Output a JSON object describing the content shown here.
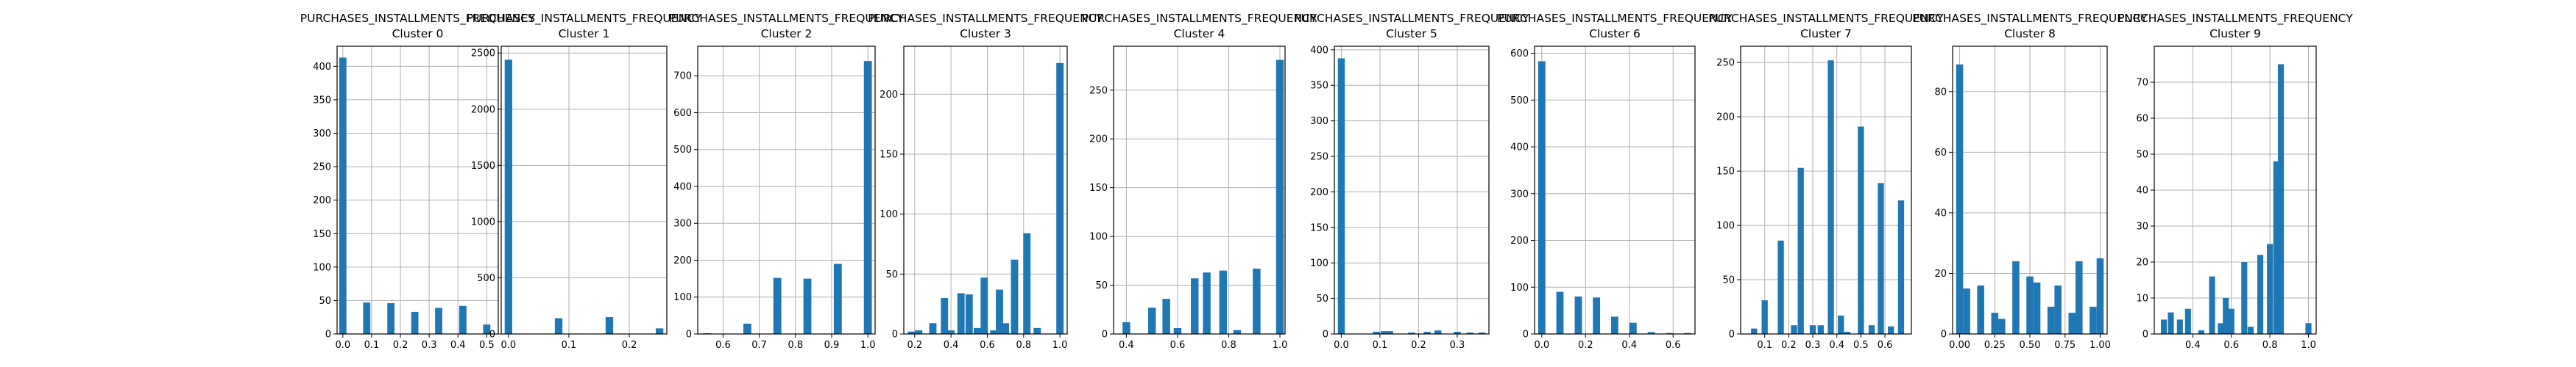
{
  "figure": {
    "bar_color": "#1f77b4",
    "grid_color": "#b0b0b0",
    "grid": true
  },
  "chart_data": [
    {
      "type": "bar",
      "title": "PURCHASES_INSTALLMENTS_FREQUENCY",
      "subtitle": "Cluster 0",
      "xlim": [
        -0.02,
        0.54
      ],
      "ylim": [
        0,
        430
      ],
      "xticks": [
        0.0,
        0.1,
        0.2,
        0.3,
        0.4,
        0.5
      ],
      "xticklabels": [
        "0.0",
        "0.1",
        "0.2",
        "0.3",
        "0.4",
        "0.5"
      ],
      "yticks": [
        0,
        50,
        100,
        150,
        200,
        250,
        300,
        350,
        400
      ],
      "yticklabels": [
        "0",
        "50",
        "100",
        "150",
        "200",
        "250",
        "300",
        "350",
        "400"
      ],
      "bin_width": 0.025,
      "x": [
        0.0,
        0.083,
        0.167,
        0.25,
        0.333,
        0.417,
        0.5
      ],
      "values": [
        413,
        47,
        46,
        33,
        39,
        42,
        14
      ]
    },
    {
      "type": "bar",
      "title": "PURCHASES_INSTALLMENTS_FREQUENCY",
      "subtitle": "Cluster 1",
      "xlim": [
        -0.012,
        0.262
      ],
      "ylim": [
        0,
        2560
      ],
      "xticks": [
        0.0,
        0.1,
        0.2
      ],
      "xticklabels": [
        "0.0",
        "0.1",
        "0.2"
      ],
      "yticks": [
        0,
        500,
        1000,
        1500,
        2000,
        2500
      ],
      "yticklabels": [
        "0",
        "500",
        "1000",
        "1500",
        "2000",
        "2500"
      ],
      "bin_width": 0.0125,
      "x": [
        0.0,
        0.083,
        0.167,
        0.25
      ],
      "values": [
        2440,
        140,
        150,
        50
      ]
    },
    {
      "type": "bar",
      "title": "PURCHASES_INSTALLMENTS_FREQUENCY",
      "subtitle": "Cluster 2",
      "xlim": [
        0.53,
        1.02
      ],
      "ylim": [
        0,
        780
      ],
      "xticks": [
        0.6,
        0.7,
        0.8,
        0.9,
        1.0
      ],
      "xticklabels": [
        "0.6",
        "0.7",
        "0.8",
        "0.9",
        "1.0"
      ],
      "yticks": [
        0,
        100,
        200,
        300,
        400,
        500,
        600,
        700
      ],
      "yticklabels": [
        "0",
        "100",
        "200",
        "300",
        "400",
        "500",
        "600",
        "700"
      ],
      "bin_width": 0.022,
      "x": [
        0.556,
        0.667,
        0.75,
        0.833,
        0.917,
        1.0
      ],
      "values": [
        2,
        28,
        152,
        150,
        190,
        740
      ]
    },
    {
      "type": "bar",
      "title": "PURCHASES_INSTALLMENTS_FREQUENCY",
      "subtitle": "Cluster 3",
      "xlim": [
        0.14,
        1.04
      ],
      "ylim": [
        0,
        240
      ],
      "xticks": [
        0.2,
        0.4,
        0.6,
        0.8,
        1.0
      ],
      "xticklabels": [
        "0.2",
        "0.4",
        "0.6",
        "0.8",
        "1.0"
      ],
      "yticks": [
        0,
        50,
        100,
        150,
        200
      ],
      "yticklabels": [
        "0",
        "50",
        "100",
        "150",
        "200"
      ],
      "bin_width": 0.04,
      "x": [
        0.182,
        0.222,
        0.3,
        0.364,
        0.4,
        0.455,
        0.5,
        0.545,
        0.583,
        0.636,
        0.667,
        0.7,
        0.75,
        0.818,
        0.875,
        1.0
      ],
      "values": [
        2,
        3,
        9,
        30,
        3,
        34,
        33,
        5,
        47,
        3,
        37,
        9,
        62,
        84,
        5,
        226
      ]
    },
    {
      "type": "bar",
      "title": "PURCHASES_INSTALLMENTS_FREQUENCY",
      "subtitle": "Cluster 4",
      "xlim": [
        0.35,
        1.02
      ],
      "ylim": [
        0,
        295
      ],
      "xticks": [
        0.4,
        0.6,
        0.8,
        1.0
      ],
      "xticklabels": [
        "0.4",
        "0.6",
        "0.8",
        "1.0"
      ],
      "yticks": [
        0,
        50,
        100,
        150,
        200,
        250
      ],
      "yticklabels": [
        "0",
        "50",
        "100",
        "150",
        "200",
        "250"
      ],
      "bin_width": 0.03,
      "x": [
        0.4,
        0.5,
        0.556,
        0.6,
        0.667,
        0.714,
        0.778,
        0.833,
        0.909,
        1.0
      ],
      "values": [
        12,
        27,
        36,
        6,
        57,
        63,
        65,
        4,
        67,
        281
      ]
    },
    {
      "type": "bar",
      "title": "PURCHASES_INSTALLMENTS_FREQUENCY",
      "subtitle": "Cluster 5",
      "xlim": [
        -0.018,
        0.382
      ],
      "ylim": [
        0,
        405
      ],
      "xticks": [
        0.0,
        0.1,
        0.2,
        0.3
      ],
      "xticklabels": [
        "0.0",
        "0.1",
        "0.2",
        "0.3"
      ],
      "yticks": [
        0,
        50,
        100,
        150,
        200,
        250,
        300,
        350,
        400
      ],
      "yticklabels": [
        "0",
        "50",
        "100",
        "150",
        "200",
        "250",
        "300",
        "350",
        "400"
      ],
      "bin_width": 0.018,
      "x": [
        0.0,
        0.091,
        0.111,
        0.125,
        0.182,
        0.222,
        0.25,
        0.3,
        0.333,
        0.364
      ],
      "values": [
        388,
        3,
        4,
        4,
        2,
        3,
        5,
        3,
        2,
        2
      ]
    },
    {
      "type": "bar",
      "title": "PURCHASES_INSTALLMENTS_FREQUENCY",
      "subtitle": "Cluster 6",
      "xlim": [
        -0.033,
        0.7
      ],
      "ylim": [
        0,
        615
      ],
      "xticks": [
        0.0,
        0.2,
        0.4,
        0.6
      ],
      "xticklabels": [
        "0.0",
        "0.2",
        "0.4",
        "0.6"
      ],
      "yticks": [
        0,
        100,
        200,
        300,
        400,
        500,
        600
      ],
      "yticklabels": [
        "0",
        "100",
        "200",
        "300",
        "400",
        "500",
        "600"
      ],
      "bin_width": 0.033,
      "x": [
        0.0,
        0.083,
        0.167,
        0.25,
        0.333,
        0.417,
        0.5,
        0.583,
        0.667
      ],
      "values": [
        583,
        90,
        80,
        78,
        37,
        24,
        4,
        2,
        2
      ]
    },
    {
      "type": "bar",
      "title": "PURCHASES_INSTALLMENTS_FREQUENCY",
      "subtitle": "Cluster 7",
      "xlim": [
        0.0,
        0.71
      ],
      "ylim": [
        0,
        265
      ],
      "xticks": [
        0.1,
        0.2,
        0.3,
        0.4,
        0.5,
        0.6
      ],
      "xticklabels": [
        "0.1",
        "0.2",
        "0.3",
        "0.4",
        "0.5",
        "0.6"
      ],
      "yticks": [
        0,
        50,
        100,
        150,
        200,
        250
      ],
      "yticklabels": [
        "0",
        "50",
        "100",
        "150",
        "200",
        "250"
      ],
      "bin_width": 0.0255,
      "x": [
        0.056,
        0.1,
        0.167,
        0.222,
        0.25,
        0.3,
        0.333,
        0.375,
        0.417,
        0.444,
        0.5,
        0.545,
        0.583,
        0.625,
        0.667
      ],
      "values": [
        5,
        31,
        86,
        8,
        153,
        8,
        8,
        252,
        17,
        2,
        191,
        8,
        139,
        7,
        123
      ]
    },
    {
      "type": "bar",
      "title": "PURCHASES_INSTALLMENTS_FREQUENCY",
      "subtitle": "Cluster 8",
      "xlim": [
        -0.05,
        1.05
      ],
      "ylim": [
        0,
        95
      ],
      "xticks": [
        0.0,
        0.25,
        0.5,
        0.75,
        1.0
      ],
      "xticklabels": [
        "0.00",
        "0.25",
        "0.50",
        "0.75",
        "1.00"
      ],
      "yticks": [
        0,
        20,
        40,
        60,
        80
      ],
      "yticklabels": [
        "0",
        "20",
        "40",
        "60",
        "80"
      ],
      "bin_width": 0.05,
      "x": [
        0.0,
        0.05,
        0.15,
        0.25,
        0.3,
        0.4,
        0.5,
        0.55,
        0.65,
        0.7,
        0.8,
        0.85,
        0.95,
        1.0
      ],
      "values": [
        89,
        15,
        16,
        7,
        5,
        24,
        19,
        17,
        9,
        16,
        7,
        24,
        9,
        25
      ]
    },
    {
      "type": "bar",
      "title": "PURCHASES_INSTALLMENTS_FREQUENCY",
      "subtitle": "Cluster 9",
      "xlim": [
        0.2,
        1.04
      ],
      "ylim": [
        0,
        80
      ],
      "xticks": [
        0.4,
        0.6,
        0.8,
        1.0
      ],
      "xticklabels": [
        "0.4",
        "0.6",
        "0.8",
        "1.0"
      ],
      "yticks": [
        0,
        10,
        20,
        30,
        40,
        50,
        60,
        70
      ],
      "yticklabels": [
        "0",
        "10",
        "20",
        "30",
        "40",
        "50",
        "60",
        "70"
      ],
      "bin_width": 0.031,
      "x": [
        0.25,
        0.286,
        0.333,
        0.375,
        0.444,
        0.5,
        0.545,
        0.571,
        0.6,
        0.667,
        0.7,
        0.75,
        0.8,
        0.833,
        0.857,
        1.0
      ],
      "values": [
        4,
        6,
        4,
        7,
        1,
        16,
        3,
        10,
        7,
        20,
        2,
        22,
        25,
        48,
        75,
        3
      ]
    }
  ]
}
